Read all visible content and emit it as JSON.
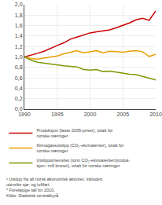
{
  "chart_data": {
    "type": "line",
    "x": [
      1990,
      1991,
      1992,
      1993,
      1994,
      1995,
      1996,
      1997,
      1998,
      1999,
      2000,
      2001,
      2002,
      2003,
      2004,
      2005,
      2006,
      2007,
      2008,
      2009,
      2010
    ],
    "series": [
      {
        "name": "Produksjon (faste 2005-priser), totalt for\nnorske næringer",
        "color": "#cc0000",
        "values": [
          1.0,
          1.03,
          1.07,
          1.11,
          1.17,
          1.22,
          1.27,
          1.34,
          1.38,
          1.42,
          1.46,
          1.48,
          1.5,
          1.52,
          1.56,
          1.6,
          1.65,
          1.71,
          1.74,
          1.7,
          1.88
        ]
      },
      {
        "name": "Klimagassutslipp (CO₂-ekvivalenter), totalt for\nnorske næringer",
        "color": "#e8a000",
        "values": [
          1.0,
          0.97,
          0.96,
          0.98,
          1.0,
          1.02,
          1.06,
          1.09,
          1.12,
          1.08,
          1.1,
          1.12,
          1.08,
          1.11,
          1.1,
          1.09,
          1.11,
          1.12,
          1.1,
          1.01,
          1.05
        ]
      },
      {
        "name": "Utslippsintensitet (tonn CO₂-ekvivalenter/produk-\nsjon i mill kroner), totalt for norske næringer",
        "color": "#7a9a00",
        "values": [
          1.0,
          0.94,
          0.9,
          0.88,
          0.86,
          0.84,
          0.83,
          0.82,
          0.81,
          0.76,
          0.75,
          0.76,
          0.72,
          0.73,
          0.71,
          0.68,
          0.67,
          0.66,
          0.63,
          0.59,
          0.56
        ]
      }
    ],
    "xlim": [
      1990,
      2010
    ],
    "xticks": [
      1990,
      1995,
      2000,
      2005,
      2010
    ],
    "ylim": [
      0.0,
      2.0
    ],
    "yticks": [
      {
        "value": 0.0,
        "label": "0,0"
      },
      {
        "value": 0.2,
        "label": "0,2"
      },
      {
        "value": 0.4,
        "label": "0,4"
      },
      {
        "value": 0.6,
        "label": "0,6"
      },
      {
        "value": 0.8,
        "label": "0,8"
      },
      {
        "value": 1.0,
        "label": "1,0"
      },
      {
        "value": 1.2,
        "label": "1,2"
      },
      {
        "value": 1.4,
        "label": "1,4"
      },
      {
        "value": 1.6,
        "label": "1,6"
      },
      {
        "value": 1.8,
        "label": "1,8"
      },
      {
        "value": 2.0,
        "label": "2,0"
      }
    ],
    "grid": true,
    "legend": "bottom",
    "annotations": [
      "¹ Utslipp fra all norsk økonomisk aktivitet, inkludert utenriks sjø- og luftfart.",
      "* Foreløpige tall for 2010.",
      "Kilde: Statistisk sentralbyrå."
    ]
  }
}
